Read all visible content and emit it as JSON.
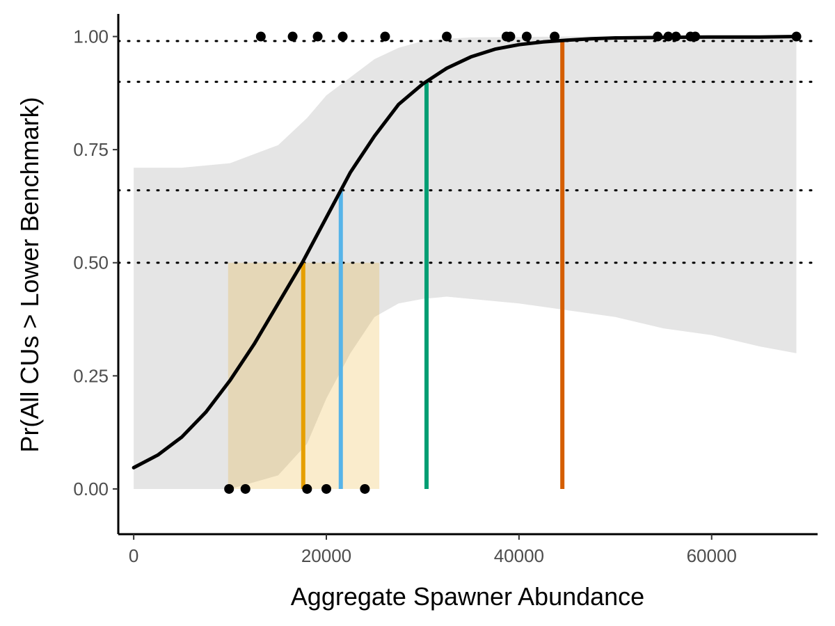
{
  "chart_data": {
    "type": "line",
    "xlabel": "Aggregate Spawner Abundance",
    "ylabel": "Pr(All CUs > Lower Benchmark)",
    "xlim": [
      -1600,
      71000
    ],
    "ylim": [
      -0.1,
      1.05
    ],
    "x_ticks": [
      0,
      20000,
      40000,
      60000
    ],
    "x_tick_labels": [
      "0",
      "20000",
      "40000",
      "60000"
    ],
    "y_ticks": [
      0,
      0.25,
      0.5,
      0.75,
      1.0
    ],
    "y_tick_labels": [
      "0.00",
      "0.25",
      "0.50",
      "0.75",
      "1.00"
    ],
    "grid": false,
    "fitted_curve": {
      "x": [
        0,
        2500,
        5000,
        7500,
        10000,
        12500,
        15000,
        17500,
        20000,
        22500,
        25000,
        27500,
        30000,
        32500,
        35000,
        37500,
        40000,
        42500,
        45000,
        47500,
        50000,
        55000,
        60000,
        65000,
        68800
      ],
      "y": [
        0.047,
        0.075,
        0.115,
        0.17,
        0.24,
        0.32,
        0.41,
        0.5,
        0.6,
        0.7,
        0.78,
        0.85,
        0.895,
        0.93,
        0.955,
        0.972,
        0.982,
        0.988,
        0.992,
        0.995,
        0.997,
        0.998,
        0.999,
        0.999,
        1.0
      ],
      "color": "#000000"
    },
    "confidence_band": {
      "x": [
        0,
        5000,
        10000,
        15000,
        18000,
        20000,
        22500,
        25000,
        27500,
        30000,
        32500,
        35000,
        40000,
        45000,
        50000,
        55000,
        60000,
        65000,
        68800
      ],
      "upper": [
        0.71,
        0.71,
        0.72,
        0.76,
        0.82,
        0.87,
        0.91,
        0.95,
        0.975,
        0.99,
        0.995,
        0.998,
        0.999,
        1.0,
        1.0,
        1.0,
        1.0,
        1.0,
        1.0
      ],
      "lower": [
        0.0,
        0.0,
        0.0,
        0.03,
        0.1,
        0.2,
        0.3,
        0.38,
        0.41,
        0.42,
        0.425,
        0.42,
        0.41,
        0.395,
        0.38,
        0.355,
        0.34,
        0.315,
        0.3
      ],
      "color": "#bebebe"
    },
    "highlight_rect": {
      "x0": 9800,
      "x1": 25500,
      "y0": 0,
      "y1": 0.5,
      "color": "#E69F00"
    },
    "observations": {
      "x": [
        13200,
        16500,
        19100,
        21700,
        26100,
        32500,
        38700,
        39100,
        40800,
        43700,
        54400,
        55500,
        56300,
        57800,
        58300,
        68800,
        9900,
        11600,
        18000,
        20000,
        24000
      ],
      "y": [
        1,
        1,
        1,
        1,
        1,
        1,
        1,
        1,
        1,
        1,
        1,
        1,
        1,
        1,
        1,
        1,
        0,
        0,
        0,
        0,
        0
      ]
    },
    "vertical_lines": [
      {
        "x": 17600,
        "y": 0.5,
        "color": "#E69F00"
      },
      {
        "x": 21500,
        "y": 0.66,
        "color": "#56B4E9"
      },
      {
        "x": 30400,
        "y": 0.9,
        "color": "#009E73"
      },
      {
        "x": 44500,
        "y": 0.99,
        "color": "#D55E00"
      }
    ],
    "horizontal_dotted_lines": [
      0.5,
      0.66,
      0.9,
      0.99
    ]
  }
}
